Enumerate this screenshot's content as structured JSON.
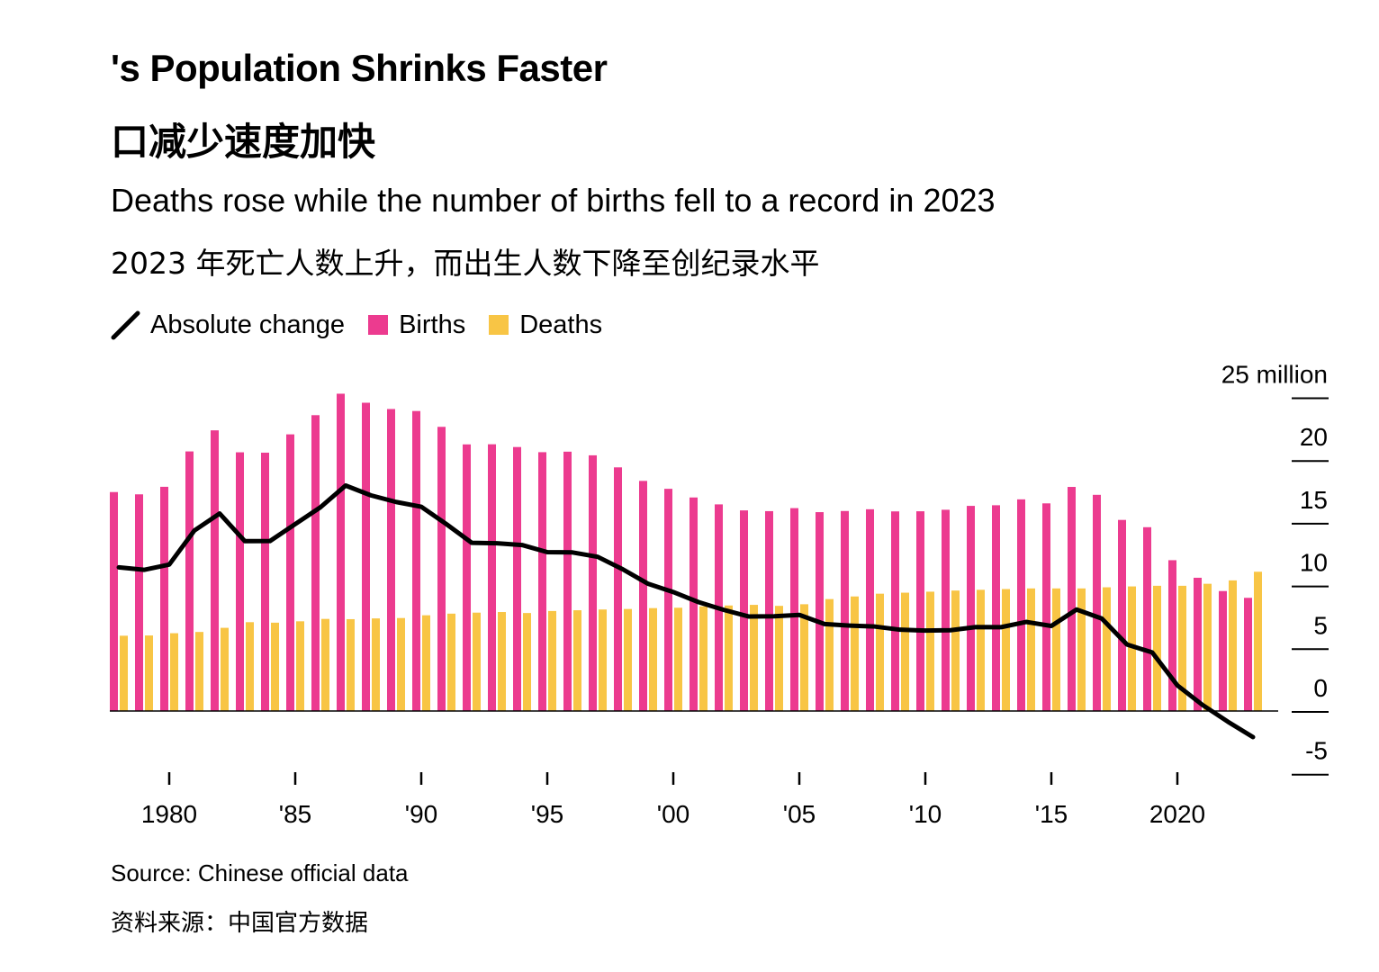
{
  "header": {
    "title": "'s Population Shrinks Faster",
    "title_cn": "口减少速度加快",
    "subtitle": "Deaths rose while the number of births fell to a record in 2023",
    "subtitle_cn": "2023 年死亡人数上升，而出生人数下降至创纪录水平"
  },
  "footer": {
    "source": "Source: Chinese official data",
    "source_cn": "资料来源：中国官方数据"
  },
  "colors": {
    "births": "#ec3b8f",
    "deaths": "#f8c545",
    "line": "#000000",
    "axis": "#000000"
  },
  "chart_data": {
    "type": "bar",
    "title": "'s Population Shrinks Faster",
    "xlabel": "",
    "ylabel": "",
    "ylim": [
      -5,
      25
    ],
    "yunit_label": "25 million",
    "yticks": [
      {
        "value": 25,
        "label": "25 million"
      },
      {
        "value": 20,
        "label": "20"
      },
      {
        "value": 15,
        "label": "15"
      },
      {
        "value": 10,
        "label": "10"
      },
      {
        "value": 5,
        "label": "5"
      },
      {
        "value": 0,
        "label": "0"
      },
      {
        "value": -5,
        "label": "-5"
      }
    ],
    "xticks": [
      {
        "year": 1980,
        "label": "1980"
      },
      {
        "year": 1985,
        "label": "'85"
      },
      {
        "year": 1990,
        "label": "'90"
      },
      {
        "year": 1995,
        "label": "'95"
      },
      {
        "year": 2000,
        "label": "'00"
      },
      {
        "year": 2005,
        "label": "'05"
      },
      {
        "year": 2010,
        "label": "'10"
      },
      {
        "year": 2015,
        "label": "'15"
      },
      {
        "year": 2020,
        "label": "2020"
      }
    ],
    "legend": [
      {
        "key": "change",
        "label": "Absolute change"
      },
      {
        "key": "births",
        "label": "Births"
      },
      {
        "key": "deaths",
        "label": "Deaths"
      }
    ],
    "legend_position": "top-left",
    "years": [
      1978,
      1979,
      1980,
      1981,
      1982,
      1983,
      1984,
      1985,
      1986,
      1987,
      1988,
      1989,
      1990,
      1991,
      1992,
      1993,
      1994,
      1995,
      1996,
      1997,
      1998,
      1999,
      2000,
      2001,
      2002,
      2003,
      2004,
      2005,
      2006,
      2007,
      2008,
      2009,
      2010,
      2011,
      2012,
      2013,
      2014,
      2015,
      2016,
      2017,
      2018,
      2019,
      2020,
      2021,
      2022,
      2023
    ],
    "series": [
      {
        "name": "Births",
        "key": "births",
        "type": "bar",
        "values": [
          17.45,
          17.27,
          17.87,
          20.69,
          22.37,
          20.62,
          20.59,
          22.05,
          23.58,
          25.29,
          24.57,
          24.07,
          23.91,
          22.65,
          21.25,
          21.26,
          21.04,
          20.63,
          20.67,
          20.38,
          19.42,
          18.34,
          17.71,
          17.02,
          16.47,
          15.99,
          15.93,
          16.17,
          15.85,
          15.94,
          16.08,
          15.91,
          15.92,
          16.04,
          16.35,
          16.4,
          16.87,
          16.55,
          17.86,
          17.23,
          15.23,
          14.65,
          12.02,
          10.62,
          9.56,
          9.02
        ]
      },
      {
        "name": "Deaths",
        "key": "deaths",
        "type": "bar",
        "values": [
          6.0,
          6.02,
          6.2,
          6.3,
          6.63,
          7.08,
          7.04,
          7.15,
          7.34,
          7.32,
          7.38,
          7.41,
          7.63,
          7.76,
          7.84,
          7.89,
          7.81,
          7.97,
          8.03,
          8.09,
          8.13,
          8.2,
          8.23,
          8.34,
          8.41,
          8.46,
          8.38,
          8.51,
          8.92,
          9.13,
          9.35,
          9.43,
          9.51,
          9.6,
          9.66,
          9.72,
          9.77,
          9.77,
          9.77,
          9.86,
          9.93,
          9.98,
          9.98,
          10.14,
          10.41,
          11.1
        ]
      },
      {
        "name": "Absolute change",
        "key": "change",
        "type": "line",
        "values": [
          11.45,
          11.25,
          11.67,
          14.39,
          15.74,
          13.54,
          13.55,
          14.9,
          16.24,
          17.97,
          17.19,
          16.66,
          16.28,
          14.89,
          13.41,
          13.37,
          13.23,
          12.66,
          12.64,
          12.29,
          11.29,
          10.14,
          9.48,
          8.68,
          8.06,
          7.53,
          7.55,
          7.66,
          6.93,
          6.81,
          6.73,
          6.48,
          6.41,
          6.44,
          6.69,
          6.68,
          7.1,
          6.78,
          8.09,
          7.37,
          5.3,
          4.67,
          2.04,
          0.48,
          -0.85,
          -2.08
        ]
      }
    ]
  }
}
